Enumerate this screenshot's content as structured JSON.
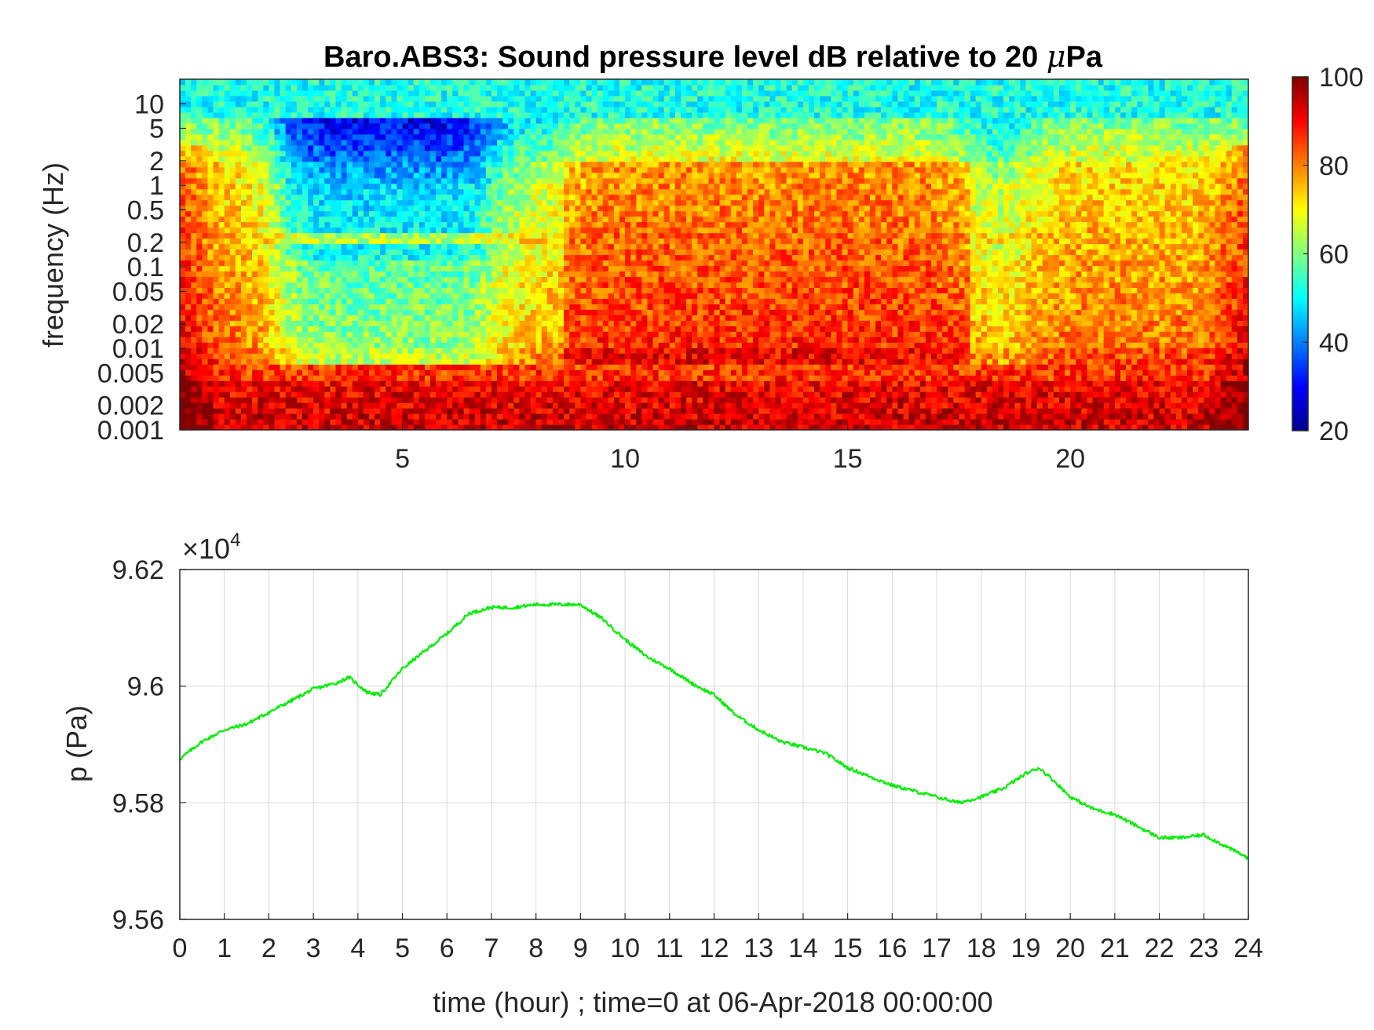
{
  "chart_data": [
    {
      "type": "heatmap",
      "title_main": "Baro.ABS3: Sound pressure level dB relative to 20 ",
      "title_mu": "μ",
      "title_unit": "Pa",
      "ylabel": "frequency (Hz)",
      "y_scale": "log",
      "xlim": [
        0,
        24
      ],
      "ylim": [
        0.001,
        20
      ],
      "x_ticks": [
        "5",
        "10",
        "15",
        "20"
      ],
      "x_tick_values": [
        5,
        10,
        15,
        20
      ],
      "y_ticks": [
        "10",
        "5",
        "2",
        "1",
        "0.5",
        "0.2",
        "0.1",
        "0.05",
        "0.02",
        "0.01",
        "0.005",
        "0.002",
        "0.001"
      ],
      "y_tick_values": [
        10,
        5,
        2,
        1,
        0.5,
        0.2,
        0.1,
        0.05,
        0.02,
        0.01,
        0.005,
        0.002,
        0.001
      ],
      "colormap": "jet",
      "colorbar": {
        "range": [
          20,
          100
        ],
        "ticks": [
          "100",
          "80",
          "60",
          "40",
          "20"
        ],
        "tick_values": [
          100,
          80,
          60,
          40,
          20
        ]
      }
    },
    {
      "type": "line",
      "ylabel": "p (Pa)",
      "xlabel": "time (hour) ; time=0 at 06-Apr-2018 00:00:00",
      "y_exponent": "×10",
      "y_exponent_power": "4",
      "xlim": [
        0,
        24
      ],
      "ylim": [
        95600,
        96200
      ],
      "x_ticks": [
        "0",
        "1",
        "2",
        "3",
        "4",
        "5",
        "6",
        "7",
        "8",
        "9",
        "10",
        "11",
        "12",
        "13",
        "14",
        "15",
        "16",
        "17",
        "18",
        "19",
        "20",
        "21",
        "22",
        "23",
        "24"
      ],
      "y_ticks": [
        "9.62",
        "9.6",
        "9.58",
        "9.56"
      ],
      "y_tick_values": [
        96200,
        96000,
        95800,
        95600
      ],
      "grid": true,
      "line_color": "#00ee00",
      "series": [
        {
          "x": [
            0,
            0.5,
            1,
            1.5,
            2,
            2.5,
            3,
            3.5,
            3.8,
            4.2,
            4.5,
            5,
            5.5,
            6,
            6.5,
            7,
            7.5,
            8,
            8.5,
            9,
            9.5,
            10,
            10.5,
            11,
            11.5,
            12,
            12.5,
            13,
            13.5,
            14,
            14.5,
            15,
            15.5,
            16,
            16.5,
            17,
            17.5,
            18,
            18.5,
            19,
            19.3,
            19.6,
            20,
            20.5,
            21,
            21.5,
            22,
            22.5,
            23,
            23.5,
            24
          ],
          "y": [
            95875,
            95905,
            95925,
            95935,
            95955,
            95975,
            95995,
            96005,
            96015,
            95990,
            95985,
            96030,
            96060,
            96090,
            96125,
            96135,
            96135,
            96140,
            96140,
            96140,
            96115,
            96080,
            96050,
            96030,
            96005,
            95985,
            95950,
            95925,
            95905,
            95895,
            95885,
            95860,
            95845,
            95830,
            95820,
            95810,
            95800,
            95810,
            95825,
            95850,
            95860,
            95840,
            95810,
            95790,
            95780,
            95760,
            95740,
            95740,
            95745,
            95725,
            95705
          ]
        }
      ]
    }
  ]
}
